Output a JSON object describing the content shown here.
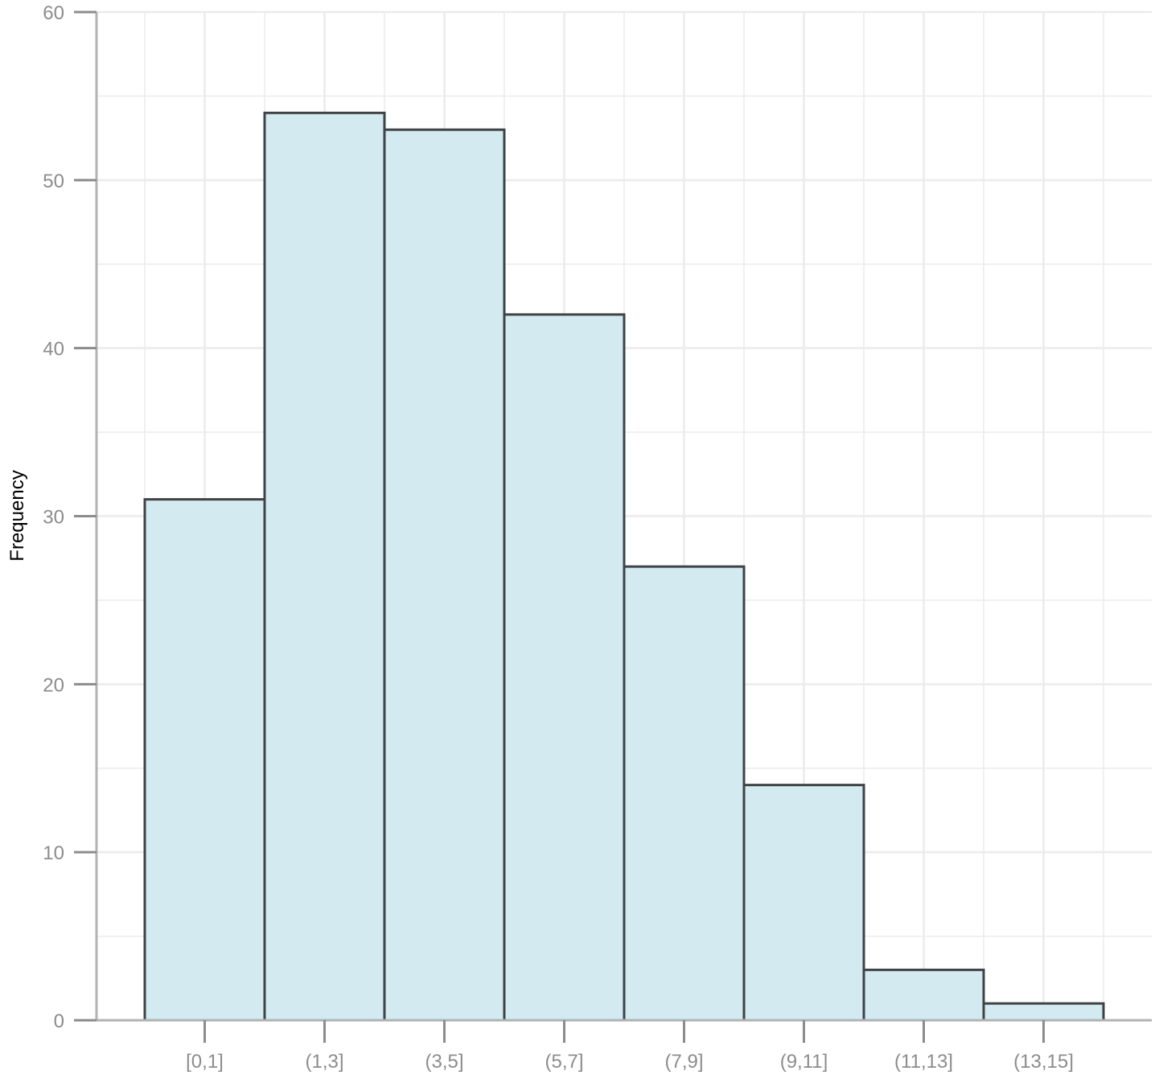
{
  "chart_data": {
    "type": "bar",
    "title": "",
    "xlabel": "",
    "ylabel": "Frequency",
    "categories": [
      "[0,1]",
      "(1,3]",
      "(3,5]",
      "(5,7]",
      "(7,9]",
      "(9,11]",
      "(11,13]",
      "(13,15]"
    ],
    "values": [
      31,
      54,
      53,
      42,
      27,
      14,
      3,
      1
    ],
    "ylim": [
      0,
      60
    ],
    "yticks": [
      0,
      10,
      20,
      30,
      40,
      50,
      60
    ],
    "grid": true,
    "legend": "none",
    "colors": {
      "bar_fill": "#d2eaf0",
      "bar_stroke": "#3d4347",
      "grid": "#ebebeb",
      "axis": "#b3b3b3",
      "tick": "#8c8c8c"
    }
  }
}
